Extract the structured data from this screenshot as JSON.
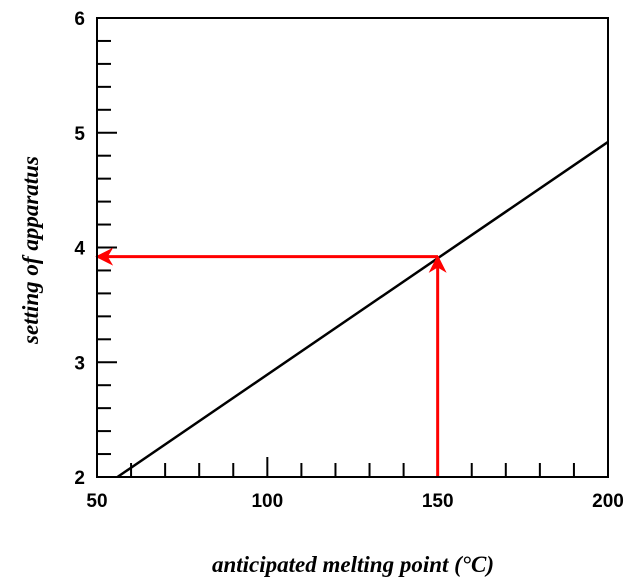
{
  "chart_data": {
    "type": "line",
    "title": "",
    "xlabel": "anticipated melting point (°C)",
    "ylabel": "setting of apparatus",
    "xlim": [
      50,
      200
    ],
    "ylim": [
      2,
      6
    ],
    "x_ticks": [
      50,
      100,
      150,
      200
    ],
    "y_ticks": [
      2,
      3,
      4,
      5,
      6
    ],
    "x_minor_step": 10,
    "y_minor_step": 0.2,
    "grid": false,
    "series": [
      {
        "x": [
          56,
          200
        ],
        "y": [
          2,
          4.92
        ],
        "color": "#000000"
      }
    ],
    "annotations": [
      {
        "type": "arrow",
        "from": [
          150,
          2
        ],
        "to": [
          150,
          3.92
        ],
        "color": "#ff0000"
      },
      {
        "type": "arrow",
        "from": [
          150,
          3.92
        ],
        "to": [
          50,
          3.92
        ],
        "color": "#ff0000"
      }
    ]
  }
}
